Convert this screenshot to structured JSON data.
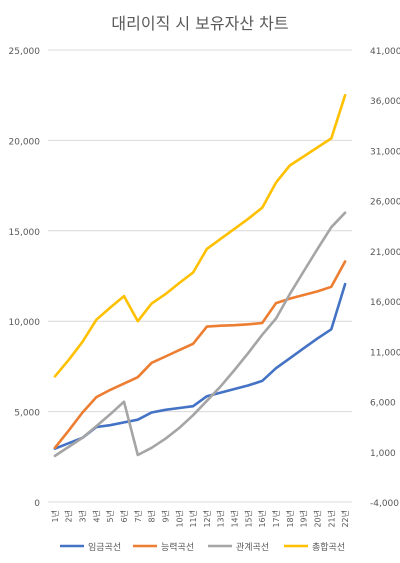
{
  "chart_data": {
    "type": "line",
    "title": "대리이직 시 보유자산 차트",
    "categories": [
      "1년",
      "2년",
      "3년",
      "4년",
      "5년",
      "6년",
      "7년",
      "8년",
      "9년",
      "10년",
      "11년",
      "12년",
      "13년",
      "14년",
      "15년",
      "16년",
      "17년",
      "18년",
      "19년",
      "20년",
      "21년",
      "22년"
    ],
    "yticks_left": [
      "0",
      "5,000",
      "10,000",
      "15,000",
      "20,000",
      "25,000"
    ],
    "yticks_right": [
      "-4,000",
      "1,000",
      "6,000",
      "11,000",
      "16,000",
      "21,000",
      "26,000",
      "31,000",
      "36,000",
      "41,000"
    ],
    "ylim_left": [
      0,
      25000
    ],
    "ylim_right": [
      -4000,
      41000
    ],
    "grid": true,
    "legend_position": "bottom",
    "series": [
      {
        "name": "임금곡선",
        "color": "#4472c4",
        "axis": "left",
        "values": [
          2950,
          3250,
          3550,
          4150,
          4250,
          4400,
          4550,
          4950,
          5100,
          5200,
          5300,
          5850,
          6050,
          6250,
          6450,
          6700,
          7400,
          7950,
          8500,
          9050,
          9550,
          12050
        ]
      },
      {
        "name": "능력곡선",
        "color": "#ed7d31",
        "axis": "left",
        "values": [
          3000,
          3950,
          4950,
          5800,
          6200,
          6550,
          6900,
          7700,
          8050,
          8400,
          8750,
          9700,
          9750,
          9780,
          9830,
          9900,
          11000,
          11250,
          11450,
          11650,
          11900,
          13300
        ]
      },
      {
        "name": "관계곡선",
        "color": "#a5a5a5",
        "axis": "left",
        "values": [
          2550,
          3050,
          3550,
          4200,
          4850,
          5550,
          2600,
          3000,
          3500,
          4100,
          4800,
          5600,
          6400,
          7300,
          8250,
          9250,
          10150,
          11500,
          12750,
          14000,
          15200,
          16000
        ]
      },
      {
        "name": "총합곡선",
        "color": "#ffc000",
        "axis": "right",
        "values": [
          8500,
          10150,
          11950,
          14150,
          15350,
          16500,
          14000,
          15750,
          16700,
          17800,
          18850,
          21200,
          22200,
          23200,
          24200,
          25300,
          27800,
          29500,
          30400,
          31300,
          32200,
          36500
        ]
      }
    ]
  }
}
